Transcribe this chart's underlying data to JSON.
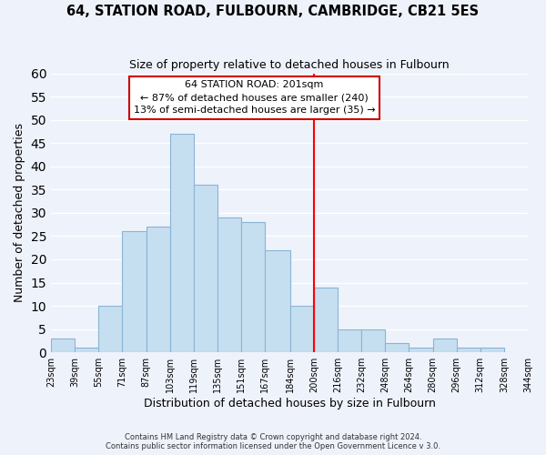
{
  "title": "64, STATION ROAD, FULBOURN, CAMBRIDGE, CB21 5ES",
  "subtitle": "Size of property relative to detached houses in Fulbourn",
  "xlabel": "Distribution of detached houses by size in Fulbourn",
  "ylabel": "Number of detached properties",
  "bin_edges": [
    23,
    39,
    55,
    71,
    87,
    103,
    119,
    135,
    151,
    167,
    184,
    200,
    216,
    232,
    248,
    264,
    280,
    296,
    312,
    328,
    344
  ],
  "bin_labels": [
    "23sqm",
    "39sqm",
    "55sqm",
    "71sqm",
    "87sqm",
    "103sqm",
    "119sqm",
    "135sqm",
    "151sqm",
    "167sqm",
    "184sqm",
    "200sqm",
    "216sqm",
    "232sqm",
    "248sqm",
    "264sqm",
    "280sqm",
    "296sqm",
    "312sqm",
    "328sqm",
    "344sqm"
  ],
  "counts": [
    3,
    1,
    10,
    26,
    27,
    47,
    36,
    29,
    28,
    22,
    10,
    14,
    5,
    5,
    2,
    1,
    3,
    1,
    1,
    0
  ],
  "bar_color": "#c6dff0",
  "bar_edge_color": "#8ab4d4",
  "vline_x": 200,
  "vline_color": "red",
  "annotation_title": "64 STATION ROAD: 201sqm",
  "annotation_line1": "← 87% of detached houses are smaller (240)",
  "annotation_line2": "13% of semi-detached houses are larger (35) →",
  "annotation_box_color": "#ffffff",
  "annotation_box_edge": "#cc0000",
  "ylim": [
    0,
    60
  ],
  "yticks": [
    0,
    5,
    10,
    15,
    20,
    25,
    30,
    35,
    40,
    45,
    50,
    55,
    60
  ],
  "footer_line1": "Contains HM Land Registry data © Crown copyright and database right 2024.",
  "footer_line2": "Contains public sector information licensed under the Open Government Licence v 3.0.",
  "bg_color": "#eef2fb",
  "grid_color": "#ffffff"
}
